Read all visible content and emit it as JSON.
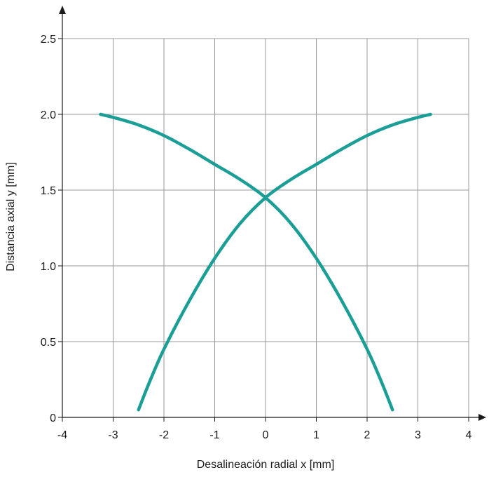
{
  "chart_data": {
    "type": "line",
    "title": "",
    "xlabel": "Desalineación radial x [mm]",
    "ylabel": "Distancia axial y [mm]",
    "xlim": [
      -4,
      4
    ],
    "ylim": [
      0,
      2.5
    ],
    "x_ticks": [
      -4,
      -3,
      -2,
      -1,
      0,
      1,
      2,
      3,
      4
    ],
    "x_tick_labels": [
      "-4",
      "-3",
      "-2",
      "-1",
      "0",
      "1",
      "2",
      "3",
      "4"
    ],
    "y_ticks": [
      0,
      0.5,
      1.0,
      1.5,
      2.0,
      2.5
    ],
    "y_tick_labels": [
      "0",
      "0.5",
      "1.0",
      "1.5",
      "2.0",
      "2.5"
    ],
    "grid": true,
    "line_color": "#1a9e96",
    "series": [
      {
        "x": [
          -3.25,
          -3.0,
          -2.5,
          -2.0,
          -1.5,
          -1.0,
          -0.5,
          0.0,
          0.5,
          1.0,
          1.5,
          2.0,
          2.3,
          2.5
        ],
        "y": [
          2.0,
          1.98,
          1.93,
          1.86,
          1.77,
          1.67,
          1.57,
          1.45,
          1.28,
          1.05,
          0.77,
          0.45,
          0.22,
          0.05
        ]
      },
      {
        "x": [
          3.25,
          3.0,
          2.5,
          2.0,
          1.5,
          1.0,
          0.5,
          0.0,
          -0.5,
          -1.0,
          -1.5,
          -2.0,
          -2.3,
          -2.5
        ],
        "y": [
          2.0,
          1.98,
          1.93,
          1.86,
          1.77,
          1.67,
          1.57,
          1.45,
          1.28,
          1.05,
          0.77,
          0.45,
          0.22,
          0.05
        ]
      }
    ]
  }
}
